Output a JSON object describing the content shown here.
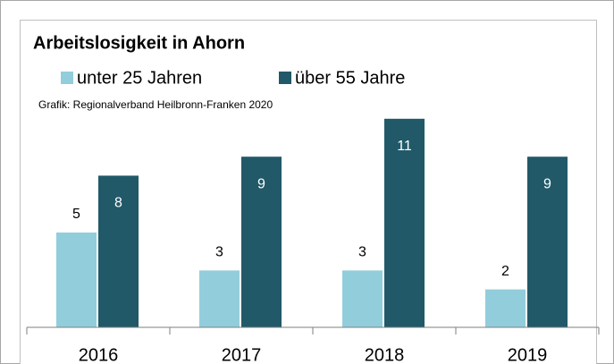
{
  "chart_data": {
    "type": "bar",
    "title": "Arbeitslosigkeit in Ahorn",
    "subtitle": "Grafik: Regionalverband Heilbronn-Franken 2020",
    "categories": [
      "2016",
      "2017",
      "2018",
      "2019"
    ],
    "series": [
      {
        "name": "unter 25 Jahren",
        "color": "#92cddc",
        "values": [
          5,
          3,
          3,
          2
        ]
      },
      {
        "name": "über 55 Jahre",
        "color": "#215968",
        "values": [
          8,
          9,
          11,
          9
        ]
      }
    ],
    "legend": "top"
  }
}
